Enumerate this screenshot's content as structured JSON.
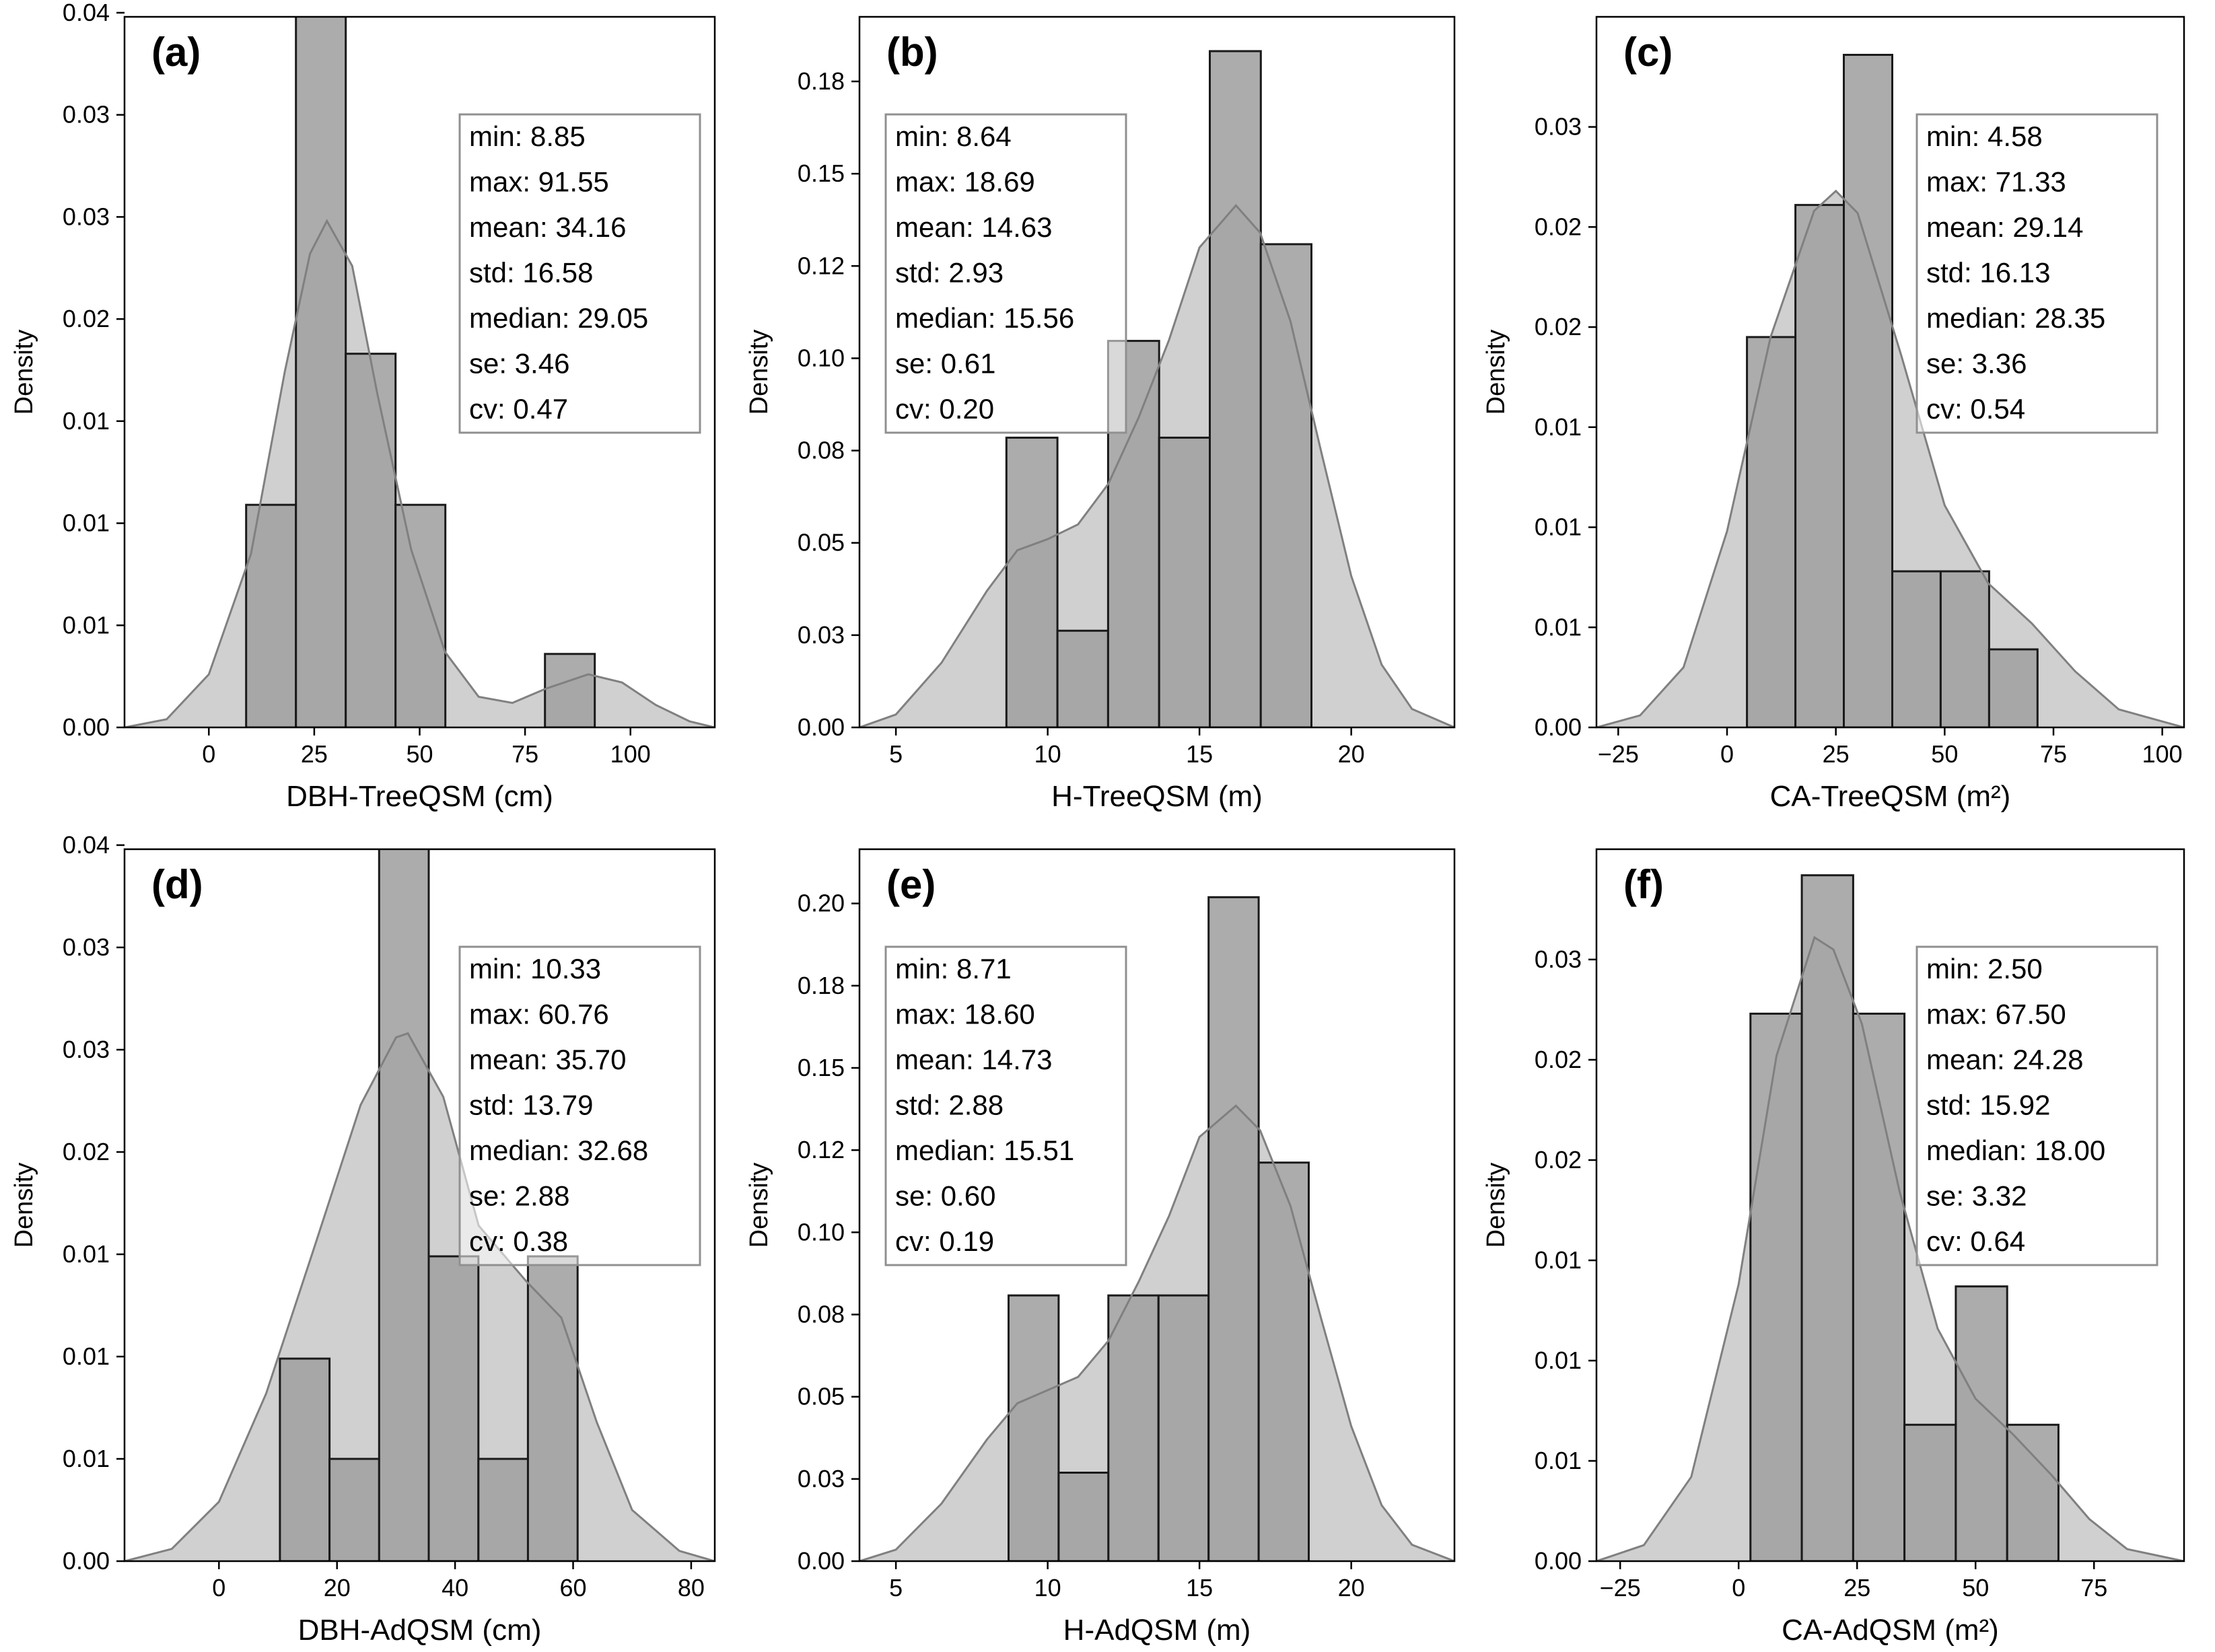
{
  "chart_data": [
    {
      "type": "histogram",
      "panel_label": "(a)",
      "xlabel": "DBH-TreeQSM (cm)",
      "ylabel": "Density",
      "xlim": [
        -20,
        120
      ],
      "ylim": [
        0,
        0.0348
      ],
      "xticks": [
        0,
        25,
        50,
        75,
        100
      ],
      "xtick_labels": [
        "0",
        "25",
        "50",
        "75",
        "100"
      ],
      "yticks": [
        0,
        0.005,
        0.01,
        0.015,
        0.02,
        0.025,
        0.03,
        0.035
      ],
      "ytick_labels": [
        "0.00",
        "0.01",
        "0.01",
        "0.01",
        "0.02",
        "0.03",
        "0.03",
        "0.04"
      ],
      "bins": [
        [
          8.85,
          20.66,
          0.0109
        ],
        [
          20.66,
          32.48,
          0.0402
        ],
        [
          32.48,
          44.29,
          0.0183
        ],
        [
          44.29,
          56.11,
          0.0109
        ],
        [
          79.73,
          91.55,
          0.0036
        ]
      ],
      "kde": [
        [
          -20,
          0.0
        ],
        [
          -10,
          0.0004
        ],
        [
          0,
          0.0026
        ],
        [
          10,
          0.0085
        ],
        [
          18,
          0.0174
        ],
        [
          24,
          0.0232
        ],
        [
          28,
          0.0248
        ],
        [
          34,
          0.0226
        ],
        [
          40,
          0.0163
        ],
        [
          48,
          0.0087
        ],
        [
          56,
          0.0037
        ],
        [
          64,
          0.0015
        ],
        [
          72,
          0.0012
        ],
        [
          80,
          0.0019
        ],
        [
          90,
          0.0026
        ],
        [
          98,
          0.0022
        ],
        [
          106,
          0.0011
        ],
        [
          114,
          0.0003
        ],
        [
          120,
          0.0
        ]
      ],
      "stats_box": {
        "position": "upper-right",
        "lines": [
          "min: 8.85",
          "max: 91.55",
          "mean: 34.16",
          "std: 16.58",
          "median: 29.05",
          "se: 3.46",
          "cv: 0.47"
        ]
      }
    },
    {
      "type": "histogram",
      "panel_label": "(b)",
      "xlabel": "H-TreeQSM (m)",
      "ylabel": "Density",
      "xlim": [
        3.8,
        23.4
      ],
      "ylim": [
        0,
        0.1925
      ],
      "xticks": [
        5,
        10,
        15,
        20
      ],
      "xtick_labels": [
        "5",
        "10",
        "15",
        "20"
      ],
      "yticks": [
        0,
        0.025,
        0.05,
        0.075,
        0.1,
        0.125,
        0.15,
        0.175
      ],
      "ytick_labels": [
        "0.00",
        "0.03",
        "0.05",
        "0.08",
        "0.10",
        "0.12",
        "0.15",
        "0.18"
      ],
      "bins": [
        [
          8.64,
          10.32,
          0.0785
        ],
        [
          10.32,
          11.99,
          0.0262
        ],
        [
          11.99,
          13.67,
          0.1047
        ],
        [
          13.67,
          15.34,
          0.0785
        ],
        [
          15.34,
          17.02,
          0.1832
        ],
        [
          17.02,
          18.69,
          0.1309
        ]
      ],
      "kde": [
        [
          3.8,
          0.0
        ],
        [
          5.0,
          0.0035
        ],
        [
          6.5,
          0.0175
        ],
        [
          8.0,
          0.037
        ],
        [
          9.0,
          0.048
        ],
        [
          10.0,
          0.051
        ],
        [
          11.0,
          0.055
        ],
        [
          12.0,
          0.066
        ],
        [
          13.0,
          0.084
        ],
        [
          14.0,
          0.105
        ],
        [
          15.0,
          0.13
        ],
        [
          16.2,
          0.1414
        ],
        [
          17.0,
          0.134
        ],
        [
          18.0,
          0.11
        ],
        [
          19.0,
          0.075
        ],
        [
          20.0,
          0.041
        ],
        [
          21.0,
          0.017
        ],
        [
          22.0,
          0.005
        ],
        [
          23.4,
          0.0
        ]
      ],
      "stats_box": {
        "position": "upper-left",
        "lines": [
          "min: 8.64",
          "max: 18.69",
          "mean: 14.63",
          "std: 2.93",
          "median: 15.56",
          "se: 0.61",
          "cv: 0.20"
        ]
      }
    },
    {
      "type": "histogram",
      "panel_label": "(c)",
      "xlabel": "CA-TreeQSM (m²)",
      "ylabel": "Density",
      "xlim": [
        -30,
        105
      ],
      "ylim": [
        0,
        0.0355
      ],
      "xticks": [
        -25,
        0,
        25,
        50,
        75,
        100
      ],
      "xtick_labels": [
        "−25",
        "0",
        "25",
        "50",
        "75",
        "100"
      ],
      "yticks": [
        0,
        0.005,
        0.01,
        0.015,
        0.02,
        0.025,
        0.03
      ],
      "ytick_labels": [
        "0.00",
        "0.01",
        "0.01",
        "0.01",
        "0.02",
        "0.02",
        "0.03"
      ],
      "bins": [
        [
          4.58,
          15.71,
          0.0195
        ],
        [
          15.71,
          26.83,
          0.0261
        ],
        [
          26.83,
          37.96,
          0.0336
        ],
        [
          37.96,
          49.08,
          0.0078
        ],
        [
          49.08,
          60.21,
          0.0078
        ],
        [
          60.21,
          71.33,
          0.0039
        ]
      ],
      "kde": [
        [
          -30,
          0.0
        ],
        [
          -20,
          0.0006
        ],
        [
          -10,
          0.003
        ],
        [
          0,
          0.0098
        ],
        [
          10,
          0.0195
        ],
        [
          20,
          0.0258
        ],
        [
          25,
          0.0268
        ],
        [
          30,
          0.0257
        ],
        [
          40,
          0.0186
        ],
        [
          50,
          0.0111
        ],
        [
          60,
          0.0072
        ],
        [
          70,
          0.0052
        ],
        [
          80,
          0.0028
        ],
        [
          90,
          0.0009
        ],
        [
          105,
          0.0
        ]
      ],
      "stats_box": {
        "position": "upper-right",
        "lines": [
          "min: 4.58",
          "max: 71.33",
          "mean: 29.14",
          "std: 16.13",
          "median: 28.35",
          "se: 3.36",
          "cv: 0.54"
        ]
      }
    },
    {
      "type": "histogram",
      "panel_label": "(d)",
      "xlabel": "DBH-AdQSM (cm)",
      "ylabel": "Density",
      "xlim": [
        -16,
        84
      ],
      "ylim": [
        0,
        0.0348
      ],
      "xticks": [
        0,
        20,
        40,
        60,
        80
      ],
      "xtick_labels": [
        "0",
        "20",
        "40",
        "60",
        "80"
      ],
      "yticks": [
        0,
        0.005,
        0.01,
        0.015,
        0.02,
        0.025,
        0.03,
        0.035
      ],
      "ytick_labels": [
        "0.00",
        "0.01",
        "0.01",
        "0.01",
        "0.02",
        "0.03",
        "0.03",
        "0.04"
      ],
      "bins": [
        [
          10.33,
          18.73,
          0.0099
        ],
        [
          18.73,
          27.14,
          0.005
        ],
        [
          27.14,
          35.54,
          0.0397
        ],
        [
          35.54,
          43.95,
          0.0149
        ],
        [
          43.95,
          52.35,
          0.005
        ],
        [
          52.35,
          60.76,
          0.0149
        ]
      ],
      "kde": [
        [
          -16,
          0.0
        ],
        [
          -8,
          0.0006
        ],
        [
          0,
          0.0029
        ],
        [
          8,
          0.0082
        ],
        [
          16,
          0.0152
        ],
        [
          24,
          0.0223
        ],
        [
          30,
          0.0256
        ],
        [
          32,
          0.0258
        ],
        [
          38,
          0.0227
        ],
        [
          44,
          0.0164
        ],
        [
          52,
          0.0137
        ],
        [
          58,
          0.0119
        ],
        [
          64,
          0.0068
        ],
        [
          70,
          0.0025
        ],
        [
          78,
          0.0005
        ],
        [
          84,
          0.0
        ]
      ],
      "stats_box": {
        "position": "upper-right",
        "lines": [
          "min: 10.33",
          "max: 60.76",
          "mean: 35.70",
          "std: 13.79",
          "median: 32.68",
          "se: 2.88",
          "cv: 0.38"
        ]
      }
    },
    {
      "type": "histogram",
      "panel_label": "(e)",
      "xlabel": "H-AdQSM (m)",
      "ylabel": "Density",
      "xlim": [
        3.8,
        23.4
      ],
      "ylim": [
        0,
        0.2165
      ],
      "xticks": [
        5,
        10,
        15,
        20
      ],
      "xtick_labels": [
        "5",
        "10",
        "15",
        "20"
      ],
      "yticks": [
        0,
        0.025,
        0.05,
        0.075,
        0.1,
        0.125,
        0.15,
        0.175,
        0.2
      ],
      "ytick_labels": [
        "0.00",
        "0.03",
        "0.05",
        "0.08",
        "0.10",
        "0.12",
        "0.15",
        "0.18",
        "0.20"
      ],
      "bins": [
        [
          8.71,
          10.36,
          0.0808
        ],
        [
          10.36,
          12.0,
          0.0269
        ],
        [
          12.0,
          13.65,
          0.0808
        ],
        [
          13.65,
          15.3,
          0.0808
        ],
        [
          15.3,
          16.95,
          0.2019
        ],
        [
          16.95,
          18.6,
          0.1212
        ]
      ],
      "kde": [
        [
          3.8,
          0.0
        ],
        [
          5.0,
          0.0035
        ],
        [
          6.5,
          0.0175
        ],
        [
          8.0,
          0.037
        ],
        [
          9.0,
          0.048
        ],
        [
          10.0,
          0.052
        ],
        [
          11.0,
          0.056
        ],
        [
          12.0,
          0.067
        ],
        [
          13.0,
          0.085
        ],
        [
          14.0,
          0.105
        ],
        [
          15.0,
          0.129
        ],
        [
          16.2,
          0.1385
        ],
        [
          17.0,
          0.131
        ],
        [
          18.0,
          0.108
        ],
        [
          19.0,
          0.074
        ],
        [
          20.0,
          0.041
        ],
        [
          21.0,
          0.017
        ],
        [
          22.0,
          0.005
        ],
        [
          23.4,
          0.0
        ]
      ],
      "stats_box": {
        "position": "upper-left",
        "lines": [
          "min: 8.71",
          "max: 18.60",
          "mean: 14.73",
          "std: 2.88",
          "median: 15.51",
          "se: 0.60",
          "cv: 0.19"
        ]
      }
    },
    {
      "type": "histogram",
      "panel_label": "(f)",
      "xlabel": "CA-AdQSM (m²)",
      "ylabel": "Density",
      "xlim": [
        -30,
        94
      ],
      "ylim": [
        0,
        0.0355
      ],
      "xticks": [
        -25,
        0,
        25,
        50,
        75
      ],
      "xtick_labels": [
        "−25",
        "0",
        "25",
        "50",
        "75"
      ],
      "yticks": [
        0,
        0.005,
        0.01,
        0.015,
        0.02,
        0.025,
        0.03
      ],
      "ytick_labels": [
        "0.00",
        "0.01",
        "0.01",
        "0.01",
        "0.02",
        "0.02",
        "0.03"
      ],
      "bins": [
        [
          2.5,
          13.33,
          0.0273
        ],
        [
          13.33,
          24.17,
          0.0342
        ],
        [
          24.17,
          35.0,
          0.0273
        ],
        [
          35.0,
          45.83,
          0.0068
        ],
        [
          45.83,
          56.67,
          0.0137
        ],
        [
          56.67,
          67.5,
          0.0068
        ]
      ],
      "kde": [
        [
          -30,
          0.0
        ],
        [
          -20,
          0.0008
        ],
        [
          -10,
          0.0042
        ],
        [
          0,
          0.0138
        ],
        [
          8,
          0.0252
        ],
        [
          16,
          0.0311
        ],
        [
          20,
          0.0305
        ],
        [
          26,
          0.0268
        ],
        [
          34,
          0.0184
        ],
        [
          42,
          0.0116
        ],
        [
          50,
          0.0081
        ],
        [
          58,
          0.0063
        ],
        [
          66,
          0.0043
        ],
        [
          74,
          0.0021
        ],
        [
          82,
          0.0006
        ],
        [
          94,
          0.0
        ]
      ],
      "stats_box": {
        "position": "upper-right",
        "lines": [
          "min: 2.50",
          "max: 67.50",
          "mean: 24.28",
          "std: 15.92",
          "median: 18.00",
          "se: 3.32",
          "cv: 0.64"
        ]
      }
    }
  ],
  "colors": {
    "bar_fill": "#a0a0a0",
    "bar_edge": "#1a1a1a",
    "kde_fill": "#d0d0d0",
    "kde_line": "#808080",
    "stats_box_edge": "#909090"
  }
}
